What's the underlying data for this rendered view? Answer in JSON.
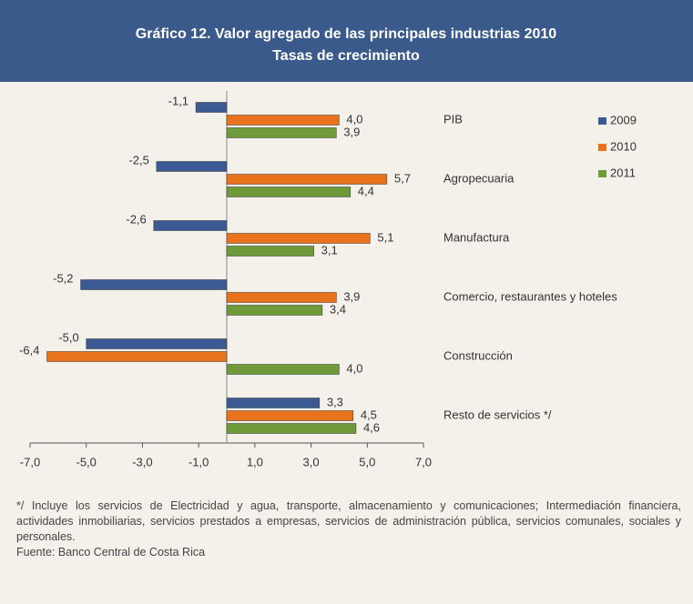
{
  "chart_data": {
    "type": "hbar",
    "title": "Gráfico 12.  Valor agregado de las principales industrias 2010",
    "subtitle": "Tasas de crecimiento",
    "categories": [
      "PIB",
      "Agropecuaria",
      "Manufactura",
      "Comercio, restaurantes y hoteles",
      "Construcción",
      "Resto de servicios */"
    ],
    "series": [
      {
        "name": "2009",
        "color": "#3b5a93",
        "values": [
          -1.1,
          -2.5,
          -2.6,
          -5.2,
          -5.0,
          3.3
        ],
        "value_labels": [
          "-1,1",
          "-2,5",
          "-2,6",
          "-5,2",
          "-5,0",
          "3,3"
        ]
      },
      {
        "name": "2010",
        "color": "#e8731c",
        "values": [
          4.0,
          5.7,
          5.1,
          3.9,
          -6.4,
          4.5
        ],
        "value_labels": [
          "4,0",
          "5,7",
          "5,1",
          "3,9",
          "-6,4",
          "4,5"
        ]
      },
      {
        "name": "2011",
        "color": "#6e9a3a",
        "values": [
          3.9,
          4.4,
          3.1,
          3.4,
          4.0,
          4.6
        ],
        "value_labels": [
          "3,9",
          "4,4",
          "3,1",
          "3,4",
          "4,0",
          "4,6"
        ]
      }
    ],
    "xlim": [
      -7,
      7
    ],
    "xticks": [
      {
        "value": -7,
        "label": "-7,0"
      },
      {
        "value": -5,
        "label": "-5,0"
      },
      {
        "value": -3,
        "label": "-3,0"
      },
      {
        "value": -1,
        "label": "-1,0"
      },
      {
        "value": 1,
        "label": "1,0"
      },
      {
        "value": 3,
        "label": "3,0"
      },
      {
        "value": 5,
        "label": "5,0"
      },
      {
        "value": 7,
        "label": "7,0"
      }
    ],
    "legend": "upper right",
    "footnote": "*/ Incluye los servicios de Electricidad y agua, transporte, almacenamiento y comunicaciones; Intermediación financiera, actividades inmobiliarias, servicios prestados a empresas, servicios de administración pública, servicios comunales, sociales y personales.",
    "source": "Fuente: Banco Central de Costa Rica"
  }
}
